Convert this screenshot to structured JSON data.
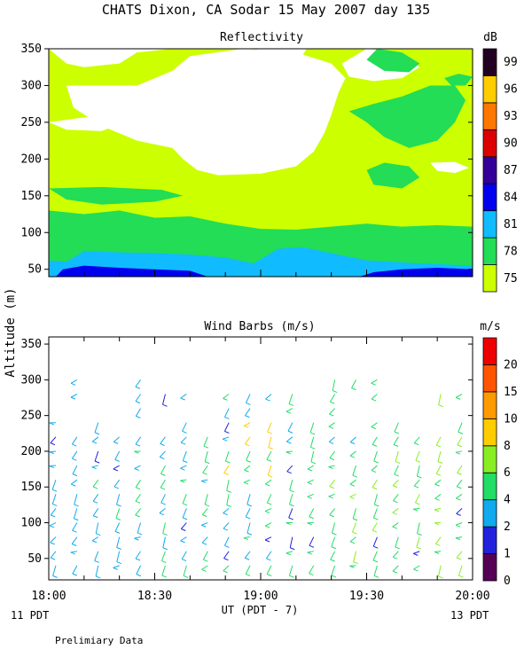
{
  "title": "CHATS Dixon, CA  Sodar  15 May 2007  day 135",
  "shared_ylabel": "Altitude (m)",
  "footer": {
    "xlabel": "UT  (PDT - 7)",
    "left_pdt": "11 PDT",
    "right_pdt": "13 PDT",
    "note": "Prelimiary Data"
  },
  "chart_data": [
    {
      "type": "heatmap",
      "title": "Reflectivity",
      "colorbar_title": "dB",
      "colorbar_ticks": [
        "75",
        "78",
        "81",
        "84",
        "87",
        "90",
        "93",
        "96",
        "99"
      ],
      "colorbar_colors": [
        "#ccff00",
        "#22dd55",
        "#11bbff",
        "#0000ee",
        "#330099",
        "#dd0000",
        "#ff7700",
        "#ffcc00",
        "#220022"
      ],
      "yticks": [
        "50",
        "100",
        "150",
        "200",
        "250",
        "300",
        "350"
      ],
      "ylim": [
        40,
        350
      ],
      "xlim": [
        "18:00",
        "20:00"
      ],
      "levels_description": [
        {
          "altitude_band": "50-60 m",
          "level": "84 dB over most of period, 81 dB 19:20-19:30"
        },
        {
          "altitude_band": "60-80 m",
          "level": "81 dB"
        },
        {
          "altitude_band": "80-120 m",
          "level": "78 dB"
        },
        {
          "altitude_band": "upper",
          "level": "75 dB with 78 dB patches and white (no data) areas"
        }
      ]
    },
    {
      "type": "scatter",
      "title": "Wind Barbs (m/s)",
      "colorbar_title": "m/s",
      "colorbar_ticks": [
        "0",
        "1",
        "2",
        "4",
        "6",
        "8",
        "10",
        "15",
        "20"
      ],
      "colorbar_colors": [
        "#550055",
        "#2222dd",
        "#11aaee",
        "#22dd66",
        "#88ee22",
        "#ffcc00",
        "#ff9900",
        "#ff5500",
        "#ee0000"
      ],
      "yticks": [
        "50",
        "100",
        "150",
        "200",
        "250",
        "300",
        "350"
      ],
      "xticks": [
        "18:00",
        "18:30",
        "19:00",
        "19:30",
        "20:00"
      ],
      "ylim": [
        20,
        360
      ],
      "xlim": [
        "18:00",
        "20:00"
      ],
      "times": [
        "18:02",
        "18:08",
        "18:14",
        "18:20",
        "18:26",
        "18:33",
        "18:39",
        "18:45",
        "18:51",
        "18:57",
        "19:03",
        "19:09",
        "19:15",
        "19:21",
        "19:27",
        "19:33",
        "19:39",
        "19:45",
        "19:51",
        "19:57"
      ],
      "altitudes": [
        40,
        60,
        80,
        100,
        120,
        140,
        160,
        180,
        200,
        220,
        240,
        260,
        280,
        300
      ]
    }
  ]
}
